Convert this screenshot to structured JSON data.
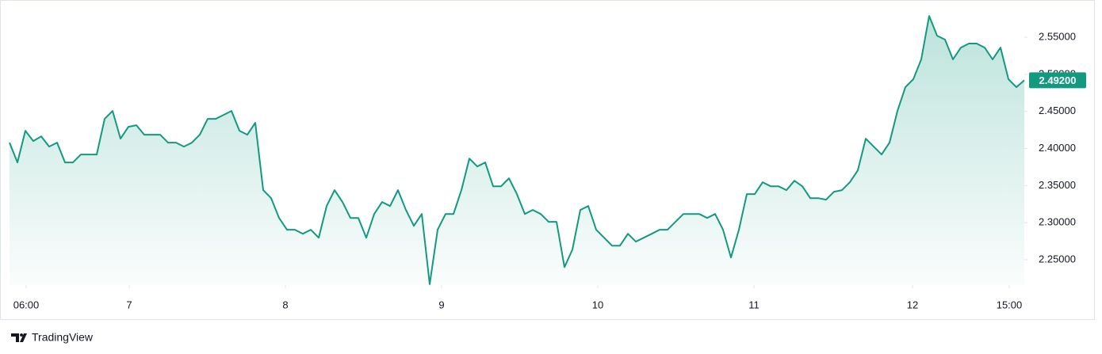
{
  "chart_data": {
    "type": "area",
    "values": [
      2.4079,
      2.3812,
      2.4239,
      2.41,
      2.4164,
      2.4026,
      2.4079,
      2.3812,
      2.3812,
      2.3919,
      2.3919,
      2.3919,
      2.44,
      2.4506,
      2.4132,
      2.4293,
      2.4314,
      2.4186,
      2.4186,
      2.4186,
      2.4079,
      2.4079,
      2.4026,
      2.4079,
      2.4186,
      2.44,
      2.44,
      2.4453,
      2.4506,
      2.4239,
      2.4186,
      2.4346,
      2.3438,
      2.3331,
      2.3064,
      2.2904,
      2.2904,
      2.285,
      2.2904,
      2.2797,
      2.3224,
      2.3438,
      2.3278,
      2.3064,
      2.3064,
      2.2797,
      2.3117,
      2.3278,
      2.3224,
      2.3438,
      2.3171,
      2.2957,
      2.3117,
      2.217,
      2.2904,
      2.3117,
      2.3117,
      2.3438,
      2.3865,
      2.3758,
      2.3812,
      2.3491,
      2.3491,
      2.3598,
      2.3385,
      2.3117,
      2.3171,
      2.3117,
      2.3011,
      2.3011,
      2.24,
      2.2637,
      2.3171,
      2.3224,
      2.2904,
      2.2797,
      2.269,
      2.269,
      2.285,
      2.2744,
      2.2797,
      2.285,
      2.2904,
      2.2904,
      2.3011,
      2.3117,
      2.3117,
      2.3117,
      2.3064,
      2.3117,
      2.2904,
      2.253,
      2.2904,
      2.3385,
      2.3385,
      2.3545,
      2.3491,
      2.3491,
      2.3438,
      2.3566,
      2.3491,
      2.3331,
      2.3331,
      2.331,
      2.3417,
      2.3438,
      2.3545,
      2.3705,
      2.4132,
      2.4026,
      2.3919,
      2.4079,
      2.4506,
      2.4827,
      2.4934,
      2.5201,
      2.5788,
      2.5521,
      2.5468,
      2.5201,
      2.5361,
      2.5415,
      2.5415,
      2.5361,
      2.5201,
      2.5361,
      2.4934,
      2.4827,
      2.492
    ],
    "color": "#129a80",
    "xlim": [
      0,
      128
    ],
    "xticks": [
      {
        "value": 2.1,
        "label": "06:00"
      },
      {
        "value": 15.1,
        "label": "7"
      },
      {
        "value": 34.8,
        "label": "8"
      },
      {
        "value": 54.5,
        "label": "9"
      },
      {
        "value": 74.2,
        "label": "10"
      },
      {
        "value": 93.9,
        "label": "11"
      },
      {
        "value": 113.9,
        "label": "12"
      },
      {
        "value": 126.1,
        "label": "15:00"
      }
    ],
    "ylim": [
      2.2158,
      2.5949
    ],
    "yticks": [
      {
        "value": 2.25,
        "label": "2.25000"
      },
      {
        "value": 2.3,
        "label": "2.30000"
      },
      {
        "value": 2.35,
        "label": "2.35000"
      },
      {
        "value": 2.4,
        "label": "2.40000"
      },
      {
        "value": 2.45,
        "label": "2.45000"
      },
      {
        "value": 2.5,
        "label": "2.50000"
      },
      {
        "value": 2.55,
        "label": "2.55000"
      }
    ],
    "current_price": {
      "value": 2.492,
      "label": "2.49200"
    },
    "brand": "TradingView"
  }
}
